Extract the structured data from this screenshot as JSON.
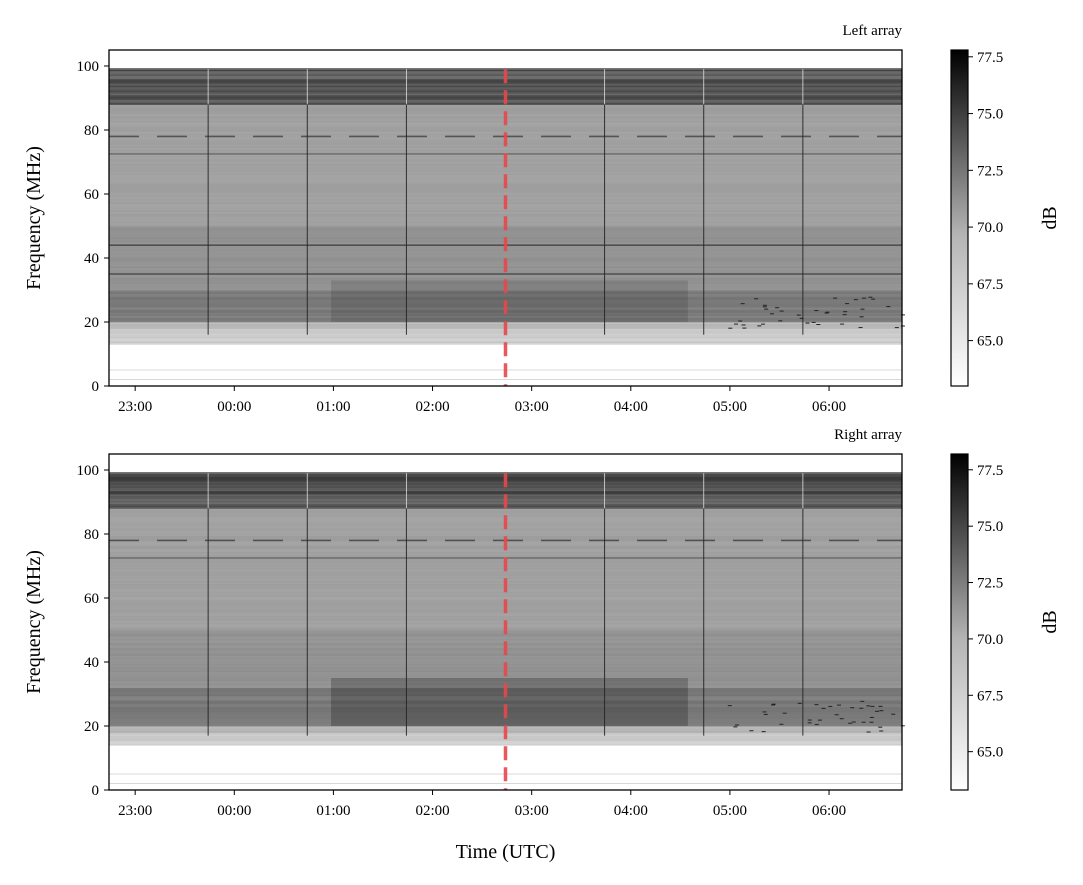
{
  "chart_data": [
    {
      "type": "heatmap",
      "title": "Left array",
      "ylabel": "Frequency (MHz)",
      "xlabel": "",
      "x_ticks": [
        "23:00",
        "00:00",
        "01:00",
        "02:00",
        "03:00",
        "04:00",
        "05:00",
        "06:00"
      ],
      "y_ticks": [
        0,
        20,
        40,
        60,
        80,
        100
      ],
      "ylim": [
        0,
        105
      ],
      "event_marker": {
        "time": "02:48",
        "color": "#e8474c",
        "style": "dashed"
      },
      "colorbar": {
        "label": "dB",
        "ticks": [
          "65.0",
          "67.5",
          "70.0",
          "72.5",
          "75.0",
          "77.5"
        ],
        "range": [
          63.0,
          77.8
        ],
        "colormap": "grey (white→black)"
      },
      "features": {
        "strong_band_mhz": [
          88,
          99
        ],
        "dark_band_mhz": [
          20,
          30
        ],
        "empty_below_mhz": 13,
        "narrow_lines_mhz": [
          78,
          72.5,
          44,
          35
        ]
      }
    },
    {
      "type": "heatmap",
      "title": "Right array",
      "ylabel": "Frequency (MHz)",
      "xlabel": "Time (UTC)",
      "x_ticks": [
        "23:00",
        "00:00",
        "01:00",
        "02:00",
        "03:00",
        "04:00",
        "05:00",
        "06:00"
      ],
      "y_ticks": [
        0,
        20,
        40,
        60,
        80,
        100
      ],
      "ylim": [
        0,
        105
      ],
      "event_marker": {
        "time": "02:48",
        "color": "#e8474c",
        "style": "dashed"
      },
      "colorbar": {
        "label": "dB",
        "ticks": [
          "65.0",
          "67.5",
          "70.0",
          "72.5",
          "75.0",
          "77.5"
        ],
        "range": [
          63.3,
          78.2
        ],
        "colormap": "grey (white→black)"
      },
      "features": {
        "strong_band_mhz": [
          88,
          99
        ],
        "dark_band_mhz": [
          20,
          32
        ],
        "empty_below_mhz": 14,
        "narrow_lines_mhz": [
          78,
          72.5
        ]
      }
    }
  ]
}
